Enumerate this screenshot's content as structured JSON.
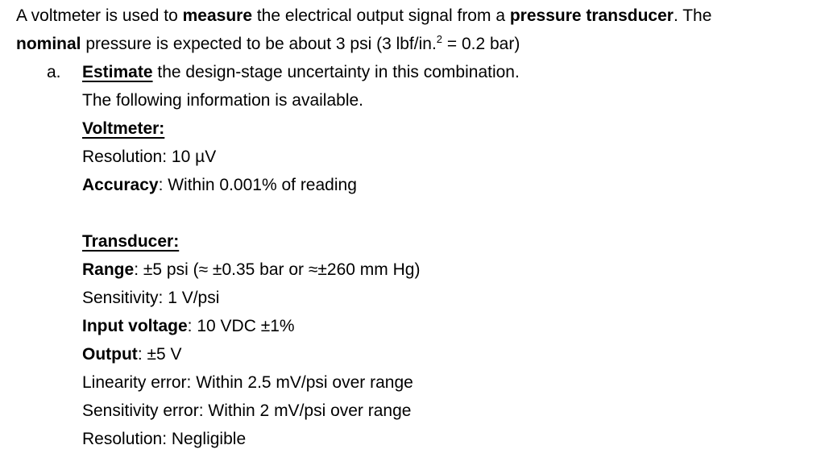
{
  "colors": {
    "text": "#000000",
    "background": "#ffffff"
  },
  "document": {
    "paragraph": {
      "line1": {
        "s1": "A voltmeter is used to ",
        "s2": "measure",
        "s3": " the electrical output signal from a ",
        "s4": "pressure transducer",
        "s5": ". The"
      },
      "line2": {
        "s1": "nominal",
        "s2": " pressure is expected to be about 3 psi (3 lbf/in.",
        "sup": "2",
        "s3": " = 0.2 bar)"
      }
    },
    "item_a": {
      "marker": "a.",
      "heading": {
        "s1": "Estimate",
        "s2": " the design-stage uncertainty in this combination."
      },
      "intro": "The following information is available.",
      "voltmeter": {
        "title": "Voltmeter:",
        "resolution": "Resolution: 10 µV",
        "accuracy_label": "Accuracy",
        "accuracy_rest": ": Within 0.001% of reading"
      },
      "transducer": {
        "title": "Transducer:",
        "range_label": "Range",
        "range_rest": ": ±5 psi (≈ ±0.35 bar or ≈±260 mm Hg)",
        "sensitivity": "Sensitivity: 1 V/psi",
        "input_voltage_label": "Input voltage",
        "input_voltage_rest": ": 10 VDC ±1%",
        "output_label": "Output",
        "output_rest": ": ±5 V",
        "linearity_error": "Linearity error: Within 2.5 mV/psi over range",
        "sensitivity_error": "Sensitivity error: Within 2 mV/psi over range",
        "resolution": "Resolution: Negligible"
      }
    }
  }
}
